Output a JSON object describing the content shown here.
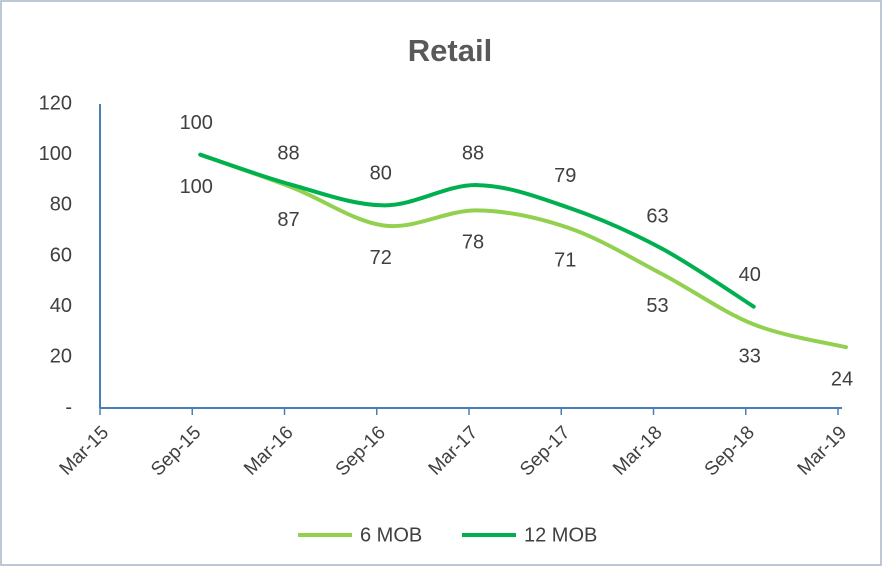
{
  "chart_data": {
    "type": "line",
    "title": "Retail",
    "categories": [
      "Mar-15",
      "Sep-15",
      "Mar-16",
      "Sep-16",
      "Mar-17",
      "Sep-17",
      "Mar-18",
      "Sep-18",
      "Mar-19"
    ],
    "series": [
      {
        "name": "6 MOB",
        "color": "#92d050",
        "values": [
          null,
          100,
          87,
          72,
          78,
          71,
          53,
          33,
          24
        ]
      },
      {
        "name": "12 MOB",
        "color": "#00b050",
        "values": [
          null,
          100,
          88,
          80,
          88,
          79,
          63,
          40,
          null
        ]
      }
    ],
    "ylim": [
      0,
      120
    ],
    "yticks": [
      {
        "value": 0,
        "label": "-"
      },
      20,
      40,
      60,
      80,
      100,
      120
    ],
    "legend": "bottom",
    "smooth": true,
    "data_labels": true
  }
}
